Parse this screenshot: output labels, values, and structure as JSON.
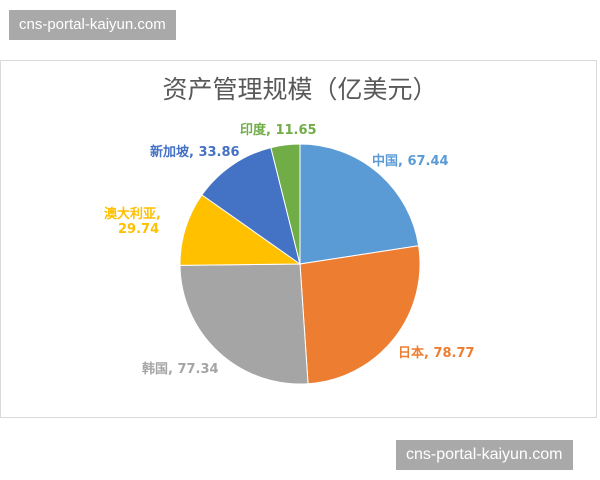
{
  "watermarks": {
    "top": "cns-portal-kaiyun.com",
    "bottom": "cns-portal-kaiyun.com"
  },
  "chart_data": {
    "type": "pie",
    "title": "资产管理规模（亿美元）",
    "start_angle": "12 o'clock, clockwise",
    "slices": [
      {
        "label": "中国",
        "value": 67.44,
        "color": "#5b9bd5",
        "text": "中国, 67.44"
      },
      {
        "label": "日本",
        "value": 78.77,
        "color": "#ed7d31",
        "text": "日本, 78.77"
      },
      {
        "label": "韩国",
        "value": 77.34,
        "color": "#a5a5a5",
        "text": "韩国, 77.34"
      },
      {
        "label": "澳大利亚",
        "value": 29.74,
        "color": "#ffc000",
        "text": "澳大利亚,",
        "text2": "29.74"
      },
      {
        "label": "新加坡",
        "value": 33.86,
        "color": "#4472c4",
        "text": "新加坡, 33.86"
      },
      {
        "label": "印度",
        "value": 11.65,
        "color": "#70ad47",
        "text": "印度, 11.65"
      }
    ]
  }
}
